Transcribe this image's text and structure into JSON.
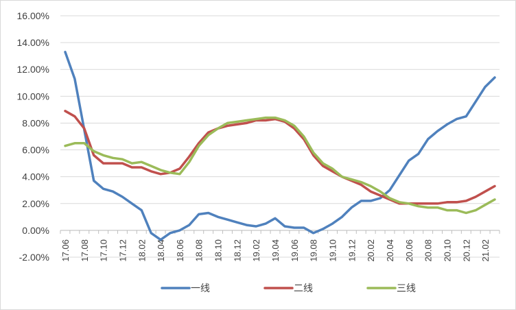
{
  "chart_data": {
    "type": "line",
    "ylim": [
      -0.02,
      0.16
    ],
    "ytick_values": [
      -0.02,
      0.0,
      0.02,
      0.04,
      0.06,
      0.08,
      0.1,
      0.12,
      0.14,
      0.16
    ],
    "ytick_labels": [
      "-2.00%",
      "0.00%",
      "2.00%",
      "4.00%",
      "6.00%",
      "8.00%",
      "10.00%",
      "12.00%",
      "14.00%",
      "16.00%"
    ],
    "grid": "horizontal",
    "legend_position": "bottom",
    "categories": [
      "17.06",
      "17.07",
      "17.08",
      "17.09",
      "17.10",
      "17.11",
      "17.12",
      "18.01",
      "18.02",
      "18.03",
      "18.04",
      "18.05",
      "18.06",
      "18.07",
      "18.08",
      "18.09",
      "18.10",
      "18.11",
      "18.12",
      "19.01",
      "19.02",
      "19.03",
      "19.04",
      "19.05",
      "19.06",
      "19.07",
      "19.08",
      "19.09",
      "19.10",
      "19.11",
      "19.12",
      "20.01",
      "20.02",
      "20.03",
      "20.04",
      "20.05",
      "20.06",
      "20.07",
      "20.08",
      "20.09",
      "20.10",
      "20.11",
      "20.12",
      "21.01",
      "21.02",
      "21.03"
    ],
    "x_labels": [
      "17.06",
      "17.08",
      "17.10",
      "17.12",
      "18.02",
      "18.04",
      "18.06",
      "18.08",
      "18.10",
      "18.12",
      "19.02",
      "19.04",
      "19.06",
      "19.08",
      "19.10",
      "19.12",
      "20.02",
      "20.04",
      "20.06",
      "20.08",
      "20.10",
      "20.12",
      "21.02"
    ],
    "series": [
      {
        "name": "一线",
        "color": "#4f81bd",
        "values": [
          0.133,
          0.113,
          0.075,
          0.037,
          0.031,
          0.029,
          0.025,
          0.02,
          0.015,
          -0.002,
          -0.007,
          -0.002,
          0.0,
          0.004,
          0.012,
          0.013,
          0.01,
          0.008,
          0.006,
          0.004,
          0.003,
          0.005,
          0.009,
          0.003,
          0.002,
          0.002,
          -0.002,
          0.001,
          0.005,
          0.01,
          0.017,
          0.022,
          0.022,
          0.024,
          0.03,
          0.041,
          0.052,
          0.057,
          0.068,
          0.074,
          0.079,
          0.083,
          0.085,
          0.096,
          0.107,
          0.114
        ]
      },
      {
        "name": "二线",
        "color": "#c0504d",
        "values": [
          0.089,
          0.085,
          0.076,
          0.056,
          0.05,
          0.05,
          0.05,
          0.047,
          0.047,
          0.044,
          0.042,
          0.043,
          0.046,
          0.055,
          0.065,
          0.073,
          0.076,
          0.078,
          0.079,
          0.08,
          0.082,
          0.082,
          0.083,
          0.081,
          0.076,
          0.068,
          0.056,
          0.048,
          0.044,
          0.04,
          0.037,
          0.034,
          0.029,
          0.026,
          0.023,
          0.02,
          0.02,
          0.02,
          0.02,
          0.02,
          0.021,
          0.021,
          0.022,
          0.025,
          0.029,
          0.033
        ]
      },
      {
        "name": "三线",
        "color": "#9bbb59",
        "values": [
          0.063,
          0.065,
          0.065,
          0.059,
          0.056,
          0.054,
          0.053,
          0.05,
          0.051,
          0.048,
          0.045,
          0.043,
          0.042,
          0.051,
          0.063,
          0.071,
          0.076,
          0.08,
          0.081,
          0.082,
          0.083,
          0.084,
          0.084,
          0.082,
          0.078,
          0.07,
          0.058,
          0.05,
          0.046,
          0.04,
          0.038,
          0.036,
          0.033,
          0.029,
          0.024,
          0.021,
          0.02,
          0.018,
          0.017,
          0.017,
          0.015,
          0.015,
          0.013,
          0.015,
          0.019,
          0.023
        ]
      }
    ]
  }
}
